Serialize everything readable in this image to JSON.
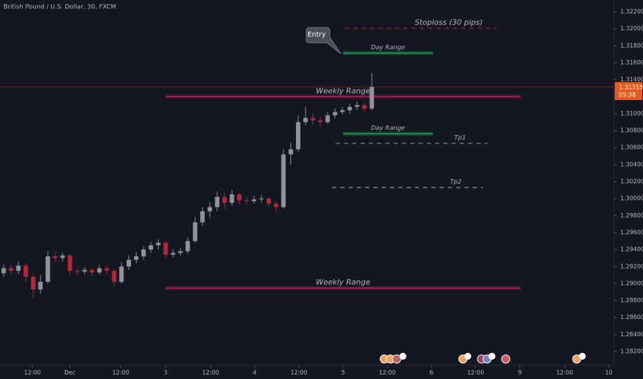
{
  "chart_data": {
    "type": "candlestick",
    "title": "British Pound / U.S. Dollar, 30, FXCM",
    "up_color": "#8f929b",
    "down_color": "#b0283a",
    "open": [
      1.2912,
      1.2918,
      1.2915,
      1.2921,
      1.2908,
      1.2893,
      1.2902,
      1.2932,
      1.293,
      1.2933,
      1.2915,
      1.2914,
      1.2916,
      1.2913,
      1.2918,
      1.2915,
      1.2902,
      1.292,
      1.2928,
      1.2932,
      1.294,
      1.2945,
      1.2948,
      1.2934,
      1.2936,
      1.2938,
      1.295,
      1.2972,
      1.2985,
      1.299,
      1.3002,
      1.2995,
      1.3005,
      1.2998,
      1.2997,
      1.2999,
      1.3,
      1.2994,
      1.299,
      1.3052,
      1.3058,
      1.309,
      1.3095,
      1.3092,
      1.309,
      1.3098,
      1.3102,
      1.3104,
      1.3108,
      1.311,
      1.3106
    ],
    "high": [
      1.2922,
      1.2922,
      1.2926,
      1.2924,
      1.2911,
      1.291,
      1.2938,
      1.2937,
      1.2936,
      1.2935,
      1.2919,
      1.2919,
      1.2918,
      1.2922,
      1.2921,
      1.2917,
      1.2925,
      1.2933,
      1.2937,
      1.2944,
      1.2949,
      1.2952,
      1.295,
      1.294,
      1.2942,
      1.2955,
      1.2978,
      1.299,
      1.2996,
      1.3008,
      1.3007,
      1.301,
      1.3007,
      1.3002,
      1.3003,
      1.3004,
      1.3002,
      1.2996,
      1.3058,
      1.3066,
      1.3098,
      1.3108,
      1.31,
      1.3096,
      1.3102,
      1.3106,
      1.3108,
      1.3112,
      1.3114,
      1.3113,
      1.3148
    ],
    "low": [
      1.2908,
      1.291,
      1.2911,
      1.2902,
      1.2884,
      1.2888,
      1.29,
      1.2925,
      1.2926,
      1.291,
      1.291,
      1.2911,
      1.2909,
      1.291,
      1.2911,
      1.2896,
      1.29,
      1.2916,
      1.2924,
      1.2928,
      1.2936,
      1.294,
      1.293,
      1.2931,
      1.2933,
      1.2935,
      1.2948,
      1.2968,
      1.2978,
      1.2985,
      1.2988,
      1.2992,
      1.2993,
      1.2993,
      1.2994,
      1.2995,
      1.299,
      1.2984,
      1.2988,
      1.304,
      1.3055,
      1.3086,
      1.3087,
      1.3085,
      1.3088,
      1.3095,
      1.3099,
      1.31,
      1.3104,
      1.3102,
      1.3104
    ],
    "close": [
      1.2918,
      1.2915,
      1.2921,
      1.2908,
      1.2893,
      1.2902,
      1.2932,
      1.293,
      1.2933,
      1.2915,
      1.2914,
      1.2916,
      1.2913,
      1.2918,
      1.2915,
      1.2902,
      1.292,
      1.2928,
      1.2932,
      1.294,
      1.2945,
      1.2948,
      1.2934,
      1.2936,
      1.2938,
      1.295,
      1.2972,
      1.2985,
      1.299,
      1.3002,
      1.2995,
      1.3005,
      1.2998,
      1.2997,
      1.2999,
      1.3,
      1.2994,
      1.299,
      1.3052,
      1.3058,
      1.309,
      1.3095,
      1.3092,
      1.309,
      1.3098,
      1.3102,
      1.3104,
      1.3108,
      1.311,
      1.3106,
      1.31315
    ],
    "xlim": [
      0,
      83.4
    ],
    "xticks": [
      {
        "value": 4.4,
        "label": "12:00"
      },
      {
        "value": 9.5,
        "label": "Dec"
      },
      {
        "value": 16.4,
        "label": "12:00"
      },
      {
        "value": 22.5,
        "label": "3"
      },
      {
        "value": 28.6,
        "label": "12:00"
      },
      {
        "value": 34.6,
        "label": "4"
      },
      {
        "value": 40.6,
        "label": "12:00"
      },
      {
        "value": 46.6,
        "label": "5"
      },
      {
        "value": 52.6,
        "label": "12:00"
      },
      {
        "value": 58.6,
        "label": "6"
      },
      {
        "value": 64.6,
        "label": "12:00"
      },
      {
        "value": 70.6,
        "label": "9"
      },
      {
        "value": 76.7,
        "label": "12:00"
      },
      {
        "value": 82.7,
        "label": "10"
      }
    ],
    "ylim": [
      1.28038,
      1.32338
    ],
    "yticks": [
      {
        "value": 1.322,
        "label": "1.32200"
      },
      {
        "value": 1.32,
        "label": "1.32000"
      },
      {
        "value": 1.318,
        "label": "1.31800"
      },
      {
        "value": 1.316,
        "label": "1.31600"
      },
      {
        "value": 1.314,
        "label": "1.31400"
      },
      {
        "value": 1.31,
        "label": "1.31000"
      },
      {
        "value": 1.308,
        "label": "1.30800"
      },
      {
        "value": 1.306,
        "label": "1.30600"
      },
      {
        "value": 1.304,
        "label": "1.30400"
      },
      {
        "value": 1.302,
        "label": "1.30200"
      },
      {
        "value": 1.3,
        "label": "1.30000"
      },
      {
        "value": 1.298,
        "label": "1.29800"
      },
      {
        "value": 1.296,
        "label": "1.29600"
      },
      {
        "value": 1.294,
        "label": "1.29400"
      },
      {
        "value": 1.292,
        "label": "1.29200"
      },
      {
        "value": 1.29,
        "label": "1.29000"
      },
      {
        "value": 1.288,
        "label": "1.28800"
      },
      {
        "value": 1.286,
        "label": "1.28600"
      },
      {
        "value": 1.284,
        "label": "1.28400"
      },
      {
        "value": 1.282,
        "label": "1.28200"
      }
    ],
    "current_price": {
      "value": 1.31315,
      "label": "1.31315",
      "countdown": "05:38"
    },
    "levels": [
      {
        "label": "Stoploss (30 pips)",
        "value": 1.32005,
        "start": 46.9,
        "end": 67.5,
        "color": "#b0283a",
        "dash": true
      },
      {
        "label": "Day Range",
        "value": 1.31713,
        "start": 46.6,
        "end": 58.8,
        "color": "#26a65b",
        "dash": false
      },
      {
        "label": "Weekly Range",
        "value": 1.312,
        "start": 22.5,
        "end": 70.7,
        "color": "#c2185b",
        "dash": false
      },
      {
        "label": "Day Range",
        "value": 1.30764,
        "start": 46.6,
        "end": 58.8,
        "color": "#26a65b",
        "dash": false
      },
      {
        "label": "Tp1",
        "value": 1.3065,
        "start": 45.6,
        "end": 66.2,
        "color": "#9598a1",
        "dash": true
      },
      {
        "label": "Tp2",
        "value": 1.3013,
        "start": 45.1,
        "end": 65.6,
        "color": "#9598a1",
        "dash": true
      },
      {
        "label": "Weekly Range",
        "value": 1.28946,
        "start": 22.5,
        "end": 70.7,
        "color": "#c2185b",
        "dash": false
      }
    ],
    "callout": "Entry"
  }
}
